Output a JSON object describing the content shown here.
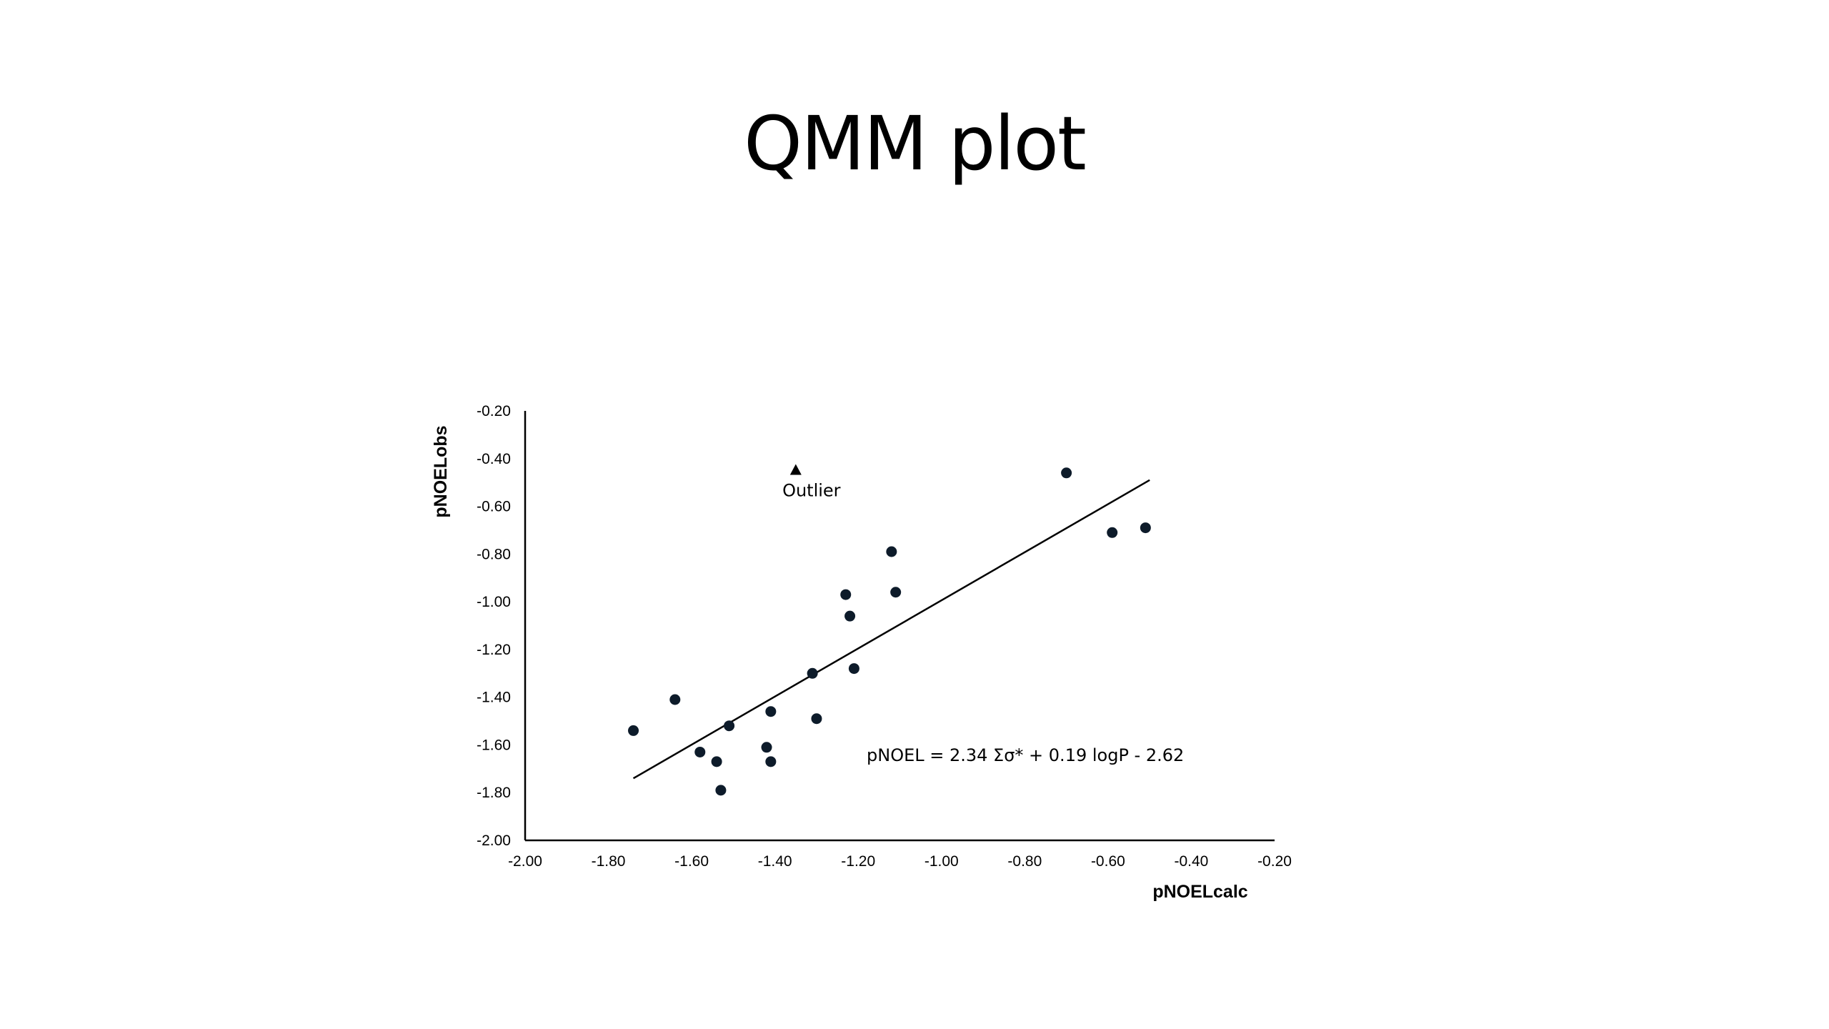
{
  "slide": {
    "title": "QMM plot"
  },
  "chart_data": {
    "type": "scatter",
    "xlabel": "pNOELcalc",
    "ylabel": "pNOELobs",
    "xlim": [
      -2.0,
      -0.2
    ],
    "ylim": [
      -2.0,
      -0.2
    ],
    "x_ticks": [
      -2.0,
      -1.8,
      -1.6,
      -1.4,
      -1.2,
      -1.0,
      -0.8,
      -0.6,
      -0.4,
      -0.2
    ],
    "y_ticks": [
      -2.0,
      -1.8,
      -1.6,
      -1.4,
      -1.2,
      -1.0,
      -0.8,
      -0.6,
      -0.4,
      -0.2
    ],
    "x_tick_labels": [
      "-2.00",
      "-1.80",
      "-1.60",
      "-1.40",
      "-1.20",
      "-1.00",
      "-0.80",
      "-0.60",
      "-0.40",
      "-0.20"
    ],
    "y_tick_labels": [
      "-2.00",
      "-1.80",
      "-1.60",
      "-1.40",
      "-1.20",
      "-1.00",
      "-0.80",
      "-0.60",
      "-0.40",
      "-0.20"
    ],
    "grid": false,
    "points": [
      {
        "x": -1.74,
        "y": -1.54
      },
      {
        "x": -1.64,
        "y": -1.41
      },
      {
        "x": -1.58,
        "y": -1.63
      },
      {
        "x": -1.54,
        "y": -1.67
      },
      {
        "x": -1.53,
        "y": -1.79
      },
      {
        "x": -1.51,
        "y": -1.52
      },
      {
        "x": -1.42,
        "y": -1.61
      },
      {
        "x": -1.41,
        "y": -1.46
      },
      {
        "x": -1.41,
        "y": -1.67
      },
      {
        "x": -1.31,
        "y": -1.3
      },
      {
        "x": -1.3,
        "y": -1.49
      },
      {
        "x": -1.23,
        "y": -0.97
      },
      {
        "x": -1.22,
        "y": -1.06
      },
      {
        "x": -1.21,
        "y": -1.28
      },
      {
        "x": -1.12,
        "y": -0.79
      },
      {
        "x": -1.11,
        "y": -0.96
      },
      {
        "x": -0.7,
        "y": -0.46
      },
      {
        "x": -0.59,
        "y": -0.71
      },
      {
        "x": -0.51,
        "y": -0.69
      }
    ],
    "outlier": {
      "x": -1.35,
      "y": -0.45,
      "label": "Outlier"
    },
    "fit_line": {
      "x1": -1.74,
      "y1": -1.74,
      "x2": -0.5,
      "y2": -0.49
    },
    "equation": "pNOEL = 2.34 Σσ* + 0.19 logP - 2.62",
    "colors": {
      "points": "#0d1b2a",
      "line": "#000000",
      "axis": "#000000"
    }
  }
}
